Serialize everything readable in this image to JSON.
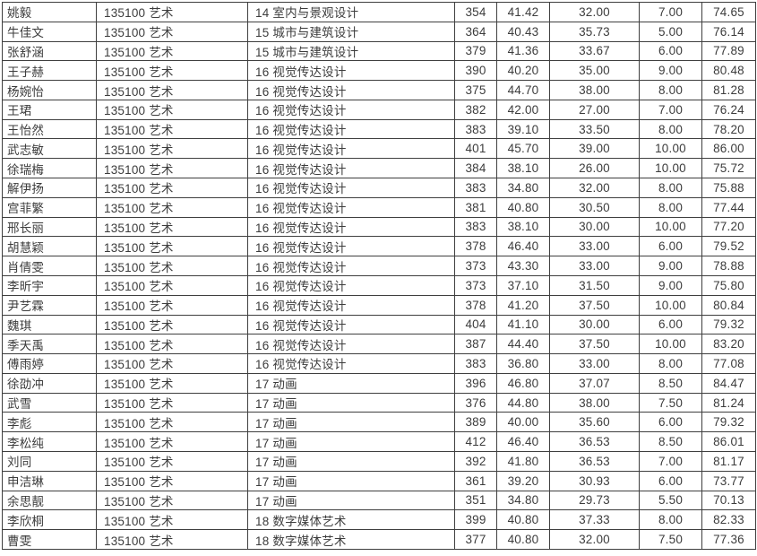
{
  "document": {
    "kind": "admission-score-table",
    "program_code_label": "135100 艺术"
  },
  "colors": {
    "background": "#ffffff",
    "border": "#3f3f3f",
    "text": "#3c3c3c"
  },
  "table": {
    "rows": [
      [
        "姚毅",
        "135100 艺术",
        "14 室内与景观设计",
        "354",
        "41.42",
        "32.00",
        "7.00",
        "74.65"
      ],
      [
        "牛佳文",
        "135100 艺术",
        "15 城市与建筑设计",
        "364",
        "40.43",
        "35.73",
        "5.00",
        "76.14"
      ],
      [
        "张舒涵",
        "135100 艺术",
        "15 城市与建筑设计",
        "379",
        "41.36",
        "33.67",
        "6.00",
        "77.89"
      ],
      [
        "王子赫",
        "135100 艺术",
        "16 视觉传达设计",
        "390",
        "40.20",
        "35.00",
        "9.00",
        "80.48"
      ],
      [
        "杨婉怡",
        "135100 艺术",
        "16 视觉传达设计",
        "375",
        "44.70",
        "38.00",
        "8.00",
        "81.28"
      ],
      [
        "王珺",
        "135100 艺术",
        "16 视觉传达设计",
        "382",
        "42.00",
        "27.00",
        "7.00",
        "76.24"
      ],
      [
        "王怡然",
        "135100 艺术",
        "16 视觉传达设计",
        "383",
        "39.10",
        "33.50",
        "8.00",
        "78.20"
      ],
      [
        "武志敏",
        "135100 艺术",
        "16 视觉传达设计",
        "401",
        "45.70",
        "39.00",
        "10.00",
        "86.00"
      ],
      [
        "徐瑞梅",
        "135100 艺术",
        "16 视觉传达设计",
        "384",
        "38.10",
        "26.00",
        "10.00",
        "75.72"
      ],
      [
        "解伊扬",
        "135100 艺术",
        "16 视觉传达设计",
        "383",
        "34.80",
        "32.00",
        "8.00",
        "75.88"
      ],
      [
        "宫菲繁",
        "135100 艺术",
        "16 视觉传达设计",
        "381",
        "40.80",
        "30.50",
        "8.00",
        "77.44"
      ],
      [
        "邢长丽",
        "135100 艺术",
        "16 视觉传达设计",
        "383",
        "38.10",
        "30.00",
        "10.00",
        "77.20"
      ],
      [
        "胡慧颖",
        "135100 艺术",
        "16 视觉传达设计",
        "378",
        "46.40",
        "33.00",
        "6.00",
        "79.52"
      ],
      [
        "肖倩雯",
        "135100 艺术",
        "16 视觉传达设计",
        "373",
        "43.30",
        "33.00",
        "9.00",
        "78.88"
      ],
      [
        "李昕宇",
        "135100 艺术",
        "16 视觉传达设计",
        "373",
        "37.10",
        "31.50",
        "9.00",
        "75.80"
      ],
      [
        "尹艺霖",
        "135100 艺术",
        "16 视觉传达设计",
        "378",
        "41.20",
        "37.50",
        "10.00",
        "80.84"
      ],
      [
        "魏琪",
        "135100 艺术",
        "16 视觉传达设计",
        "404",
        "41.10",
        "30.00",
        "6.00",
        "79.32"
      ],
      [
        "季天禹",
        "135100 艺术",
        "16 视觉传达设计",
        "387",
        "44.40",
        "37.50",
        "10.00",
        "83.20"
      ],
      [
        "傅雨婷",
        "135100 艺术",
        "16 视觉传达设计",
        "383",
        "36.80",
        "33.00",
        "8.00",
        "77.08"
      ],
      [
        "徐劭冲",
        "135100 艺术",
        "17 动画",
        "396",
        "46.80",
        "37.07",
        "8.50",
        "84.47"
      ],
      [
        "武雪",
        "135100 艺术",
        "17 动画",
        "376",
        "44.80",
        "38.00",
        "7.50",
        "81.24"
      ],
      [
        "李彪",
        "135100 艺术",
        "17 动画",
        "389",
        "40.00",
        "35.60",
        "6.00",
        "79.32"
      ],
      [
        "李松纯",
        "135100 艺术",
        "17 动画",
        "412",
        "46.40",
        "36.53",
        "8.50",
        "86.01"
      ],
      [
        "刘同",
        "135100 艺术",
        "17 动画",
        "392",
        "41.80",
        "36.53",
        "7.00",
        "81.17"
      ],
      [
        "申洁琳",
        "135100 艺术",
        "17 动画",
        "361",
        "39.20",
        "30.93",
        "6.00",
        "73.77"
      ],
      [
        "余思靓",
        "135100 艺术",
        "17 动画",
        "351",
        "34.80",
        "29.73",
        "5.50",
        "70.13"
      ],
      [
        "李欣桐",
        "135100 艺术",
        "18 数字媒体艺术",
        "399",
        "40.80",
        "37.33",
        "8.00",
        "82.33"
      ],
      [
        "曹雯",
        "135100 艺术",
        "18 数字媒体艺术",
        "377",
        "40.80",
        "32.00",
        "7.50",
        "77.36"
      ]
    ]
  }
}
